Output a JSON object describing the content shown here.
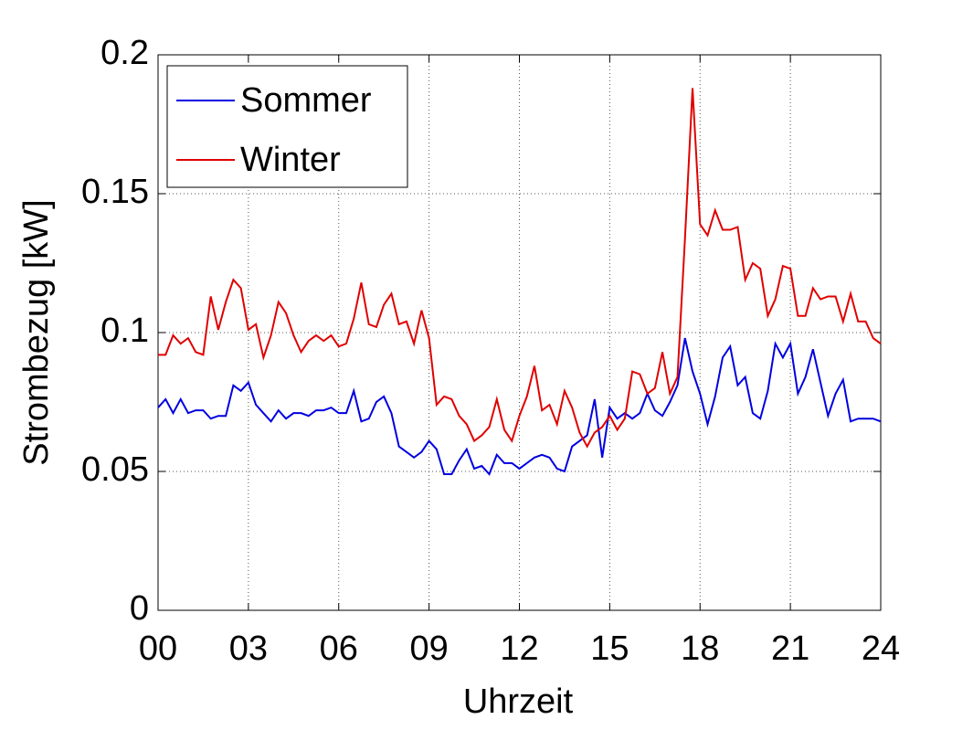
{
  "chart_data": {
    "type": "line",
    "xlabel": "Uhrzeit",
    "ylabel": "Strombezug [kW]",
    "x": [
      0,
      0.25,
      0.5,
      0.75,
      1,
      1.25,
      1.5,
      1.75,
      2,
      2.25,
      2.5,
      2.75,
      3,
      3.25,
      3.5,
      3.75,
      4,
      4.25,
      4.5,
      4.75,
      5,
      5.25,
      5.5,
      5.75,
      6,
      6.25,
      6.5,
      6.75,
      7,
      7.25,
      7.5,
      7.75,
      8,
      8.25,
      8.5,
      8.75,
      9,
      9.25,
      9.5,
      9.75,
      10,
      10.25,
      10.5,
      10.75,
      11,
      11.25,
      11.5,
      11.75,
      12,
      12.25,
      12.5,
      12.75,
      13,
      13.25,
      13.5,
      13.75,
      14,
      14.25,
      14.5,
      14.75,
      15,
      15.25,
      15.5,
      15.75,
      16,
      16.25,
      16.5,
      16.75,
      17,
      17.25,
      17.5,
      17.75,
      18,
      18.25,
      18.5,
      18.75,
      19,
      19.25,
      19.5,
      19.75,
      20,
      20.25,
      20.5,
      20.75,
      21,
      21.25,
      21.5,
      21.75,
      22,
      22.25,
      22.5,
      22.75,
      23,
      23.25,
      23.5,
      23.75,
      24
    ],
    "series": [
      {
        "name": "Sommer",
        "color": "#0000e0",
        "values": [
          0.073,
          0.076,
          0.071,
          0.076,
          0.071,
          0.072,
          0.072,
          0.069,
          0.07,
          0.07,
          0.081,
          0.079,
          0.082,
          0.074,
          0.071,
          0.068,
          0.072,
          0.069,
          0.071,
          0.071,
          0.07,
          0.072,
          0.072,
          0.073,
          0.071,
          0.071,
          0.079,
          0.068,
          0.069,
          0.075,
          0.077,
          0.071,
          0.059,
          0.057,
          0.055,
          0.057,
          0.061,
          0.058,
          0.049,
          0.049,
          0.054,
          0.058,
          0.051,
          0.052,
          0.049,
          0.056,
          0.053,
          0.053,
          0.051,
          0.053,
          0.055,
          0.056,
          0.055,
          0.051,
          0.05,
          0.059,
          0.061,
          0.063,
          0.076,
          0.055,
          0.073,
          0.069,
          0.071,
          0.069,
          0.071,
          0.078,
          0.072,
          0.07,
          0.075,
          0.081,
          0.098,
          0.086,
          0.078,
          0.067,
          0.077,
          0.091,
          0.095,
          0.081,
          0.084,
          0.071,
          0.069,
          0.079,
          0.096,
          0.091,
          0.096,
          0.078,
          0.084,
          0.094,
          0.082,
          0.07,
          0.078,
          0.083,
          0.068,
          0.069,
          0.069,
          0.069,
          0.068
        ]
      },
      {
        "name": "Winter",
        "color": "#e00000",
        "values": [
          0.092,
          0.092,
          0.099,
          0.096,
          0.098,
          0.093,
          0.092,
          0.113,
          0.101,
          0.111,
          0.119,
          0.116,
          0.101,
          0.103,
          0.091,
          0.099,
          0.111,
          0.107,
          0.099,
          0.093,
          0.097,
          0.099,
          0.097,
          0.099,
          0.095,
          0.096,
          0.105,
          0.118,
          0.103,
          0.102,
          0.11,
          0.114,
          0.103,
          0.104,
          0.096,
          0.108,
          0.098,
          0.074,
          0.077,
          0.076,
          0.07,
          0.067,
          0.061,
          0.063,
          0.066,
          0.076,
          0.065,
          0.061,
          0.07,
          0.077,
          0.088,
          0.072,
          0.074,
          0.067,
          0.079,
          0.073,
          0.064,
          0.059,
          0.064,
          0.066,
          0.07,
          0.065,
          0.069,
          0.086,
          0.085,
          0.078,
          0.08,
          0.093,
          0.078,
          0.084,
          0.134,
          0.188,
          0.139,
          0.135,
          0.144,
          0.137,
          0.137,
          0.138,
          0.119,
          0.125,
          0.123,
          0.106,
          0.112,
          0.124,
          0.123,
          0.106,
          0.106,
          0.116,
          0.112,
          0.113,
          0.113,
          0.104,
          0.114,
          0.104,
          0.104,
          0.098,
          0.096
        ]
      }
    ],
    "xlim": [
      0,
      24
    ],
    "xticks": [
      {
        "value": 0,
        "label": "00"
      },
      {
        "value": 3,
        "label": "03"
      },
      {
        "value": 6,
        "label": "06"
      },
      {
        "value": 9,
        "label": "09"
      },
      12,
      15,
      18,
      21,
      24
    ],
    "ylim": [
      0,
      0.2
    ],
    "yticks": [
      0,
      0.05,
      0.1,
      0.15,
      0.2
    ],
    "grid": true,
    "legend": "upper left"
  }
}
